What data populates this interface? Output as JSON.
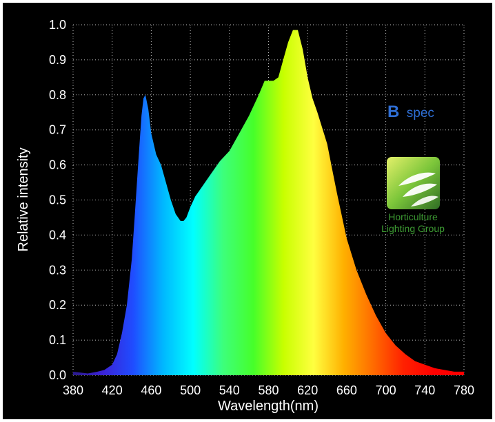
{
  "chart_data": {
    "type": "area",
    "xlabel": "Wavelength(nm)",
    "ylabel": "Relative intensity",
    "xlim": [
      380,
      780
    ],
    "ylim": [
      0.0,
      1.0
    ],
    "x_ticks": [
      "380",
      "420",
      "460",
      "500",
      "540",
      "580",
      "620",
      "660",
      "700",
      "740",
      "780"
    ],
    "y_ticks": [
      "0.0",
      "0.1",
      "0.2",
      "0.3",
      "0.4",
      "0.5",
      "0.6",
      "0.7",
      "0.8",
      "0.9",
      "1.0"
    ],
    "grid": true,
    "fill": "spectral gradient",
    "series": [
      {
        "x": [
          380,
          395,
          405,
          412,
          420,
          425,
          430,
          435,
          440,
          443,
          447,
          450,
          452,
          454,
          457,
          460,
          465,
          470,
          475,
          480,
          485,
          490,
          493,
          496,
          500,
          505,
          510,
          520,
          530,
          540,
          550,
          560,
          570,
          576,
          580,
          585,
          590,
          595,
          600,
          605,
          610,
          615,
          620,
          625,
          630,
          640,
          645,
          650,
          660,
          670,
          680,
          690,
          700,
          710,
          720,
          730,
          740,
          750,
          760,
          770,
          780
        ],
        "y": [
          0.01,
          0.005,
          0.01,
          0.015,
          0.03,
          0.06,
          0.12,
          0.2,
          0.33,
          0.45,
          0.62,
          0.74,
          0.79,
          0.8,
          0.76,
          0.69,
          0.63,
          0.6,
          0.55,
          0.5,
          0.46,
          0.44,
          0.44,
          0.45,
          0.48,
          0.51,
          0.53,
          0.57,
          0.61,
          0.64,
          0.69,
          0.74,
          0.8,
          0.84,
          0.84,
          0.84,
          0.85,
          0.9,
          0.95,
          0.985,
          0.985,
          0.93,
          0.85,
          0.79,
          0.75,
          0.66,
          0.59,
          0.52,
          0.39,
          0.3,
          0.23,
          0.17,
          0.12,
          0.085,
          0.06,
          0.04,
          0.03,
          0.02,
          0.015,
          0.01,
          0.01
        ]
      }
    ],
    "annotations": [
      {
        "text_bold": "B",
        "text": "spec",
        "color": "#2f6fd6"
      }
    ]
  },
  "logo": {
    "name": "Horticulture Lighting Group",
    "line1": "Horticulture",
    "line2": "Lighting Group",
    "colors": [
      "#3e8a2e",
      "#8fd13a"
    ]
  },
  "colors": {
    "background": "#000000",
    "text": "#ffffff",
    "gradient": [
      "#2a1a8a",
      "#3b22d6",
      "#1f4dff",
      "#00b8ff",
      "#00ffff",
      "#3dff7a",
      "#46ff2a",
      "#c8ff00",
      "#ffff40",
      "#ffb000",
      "#ff6a00",
      "#ff2000",
      "#ff0000",
      "#ff0000"
    ]
  }
}
